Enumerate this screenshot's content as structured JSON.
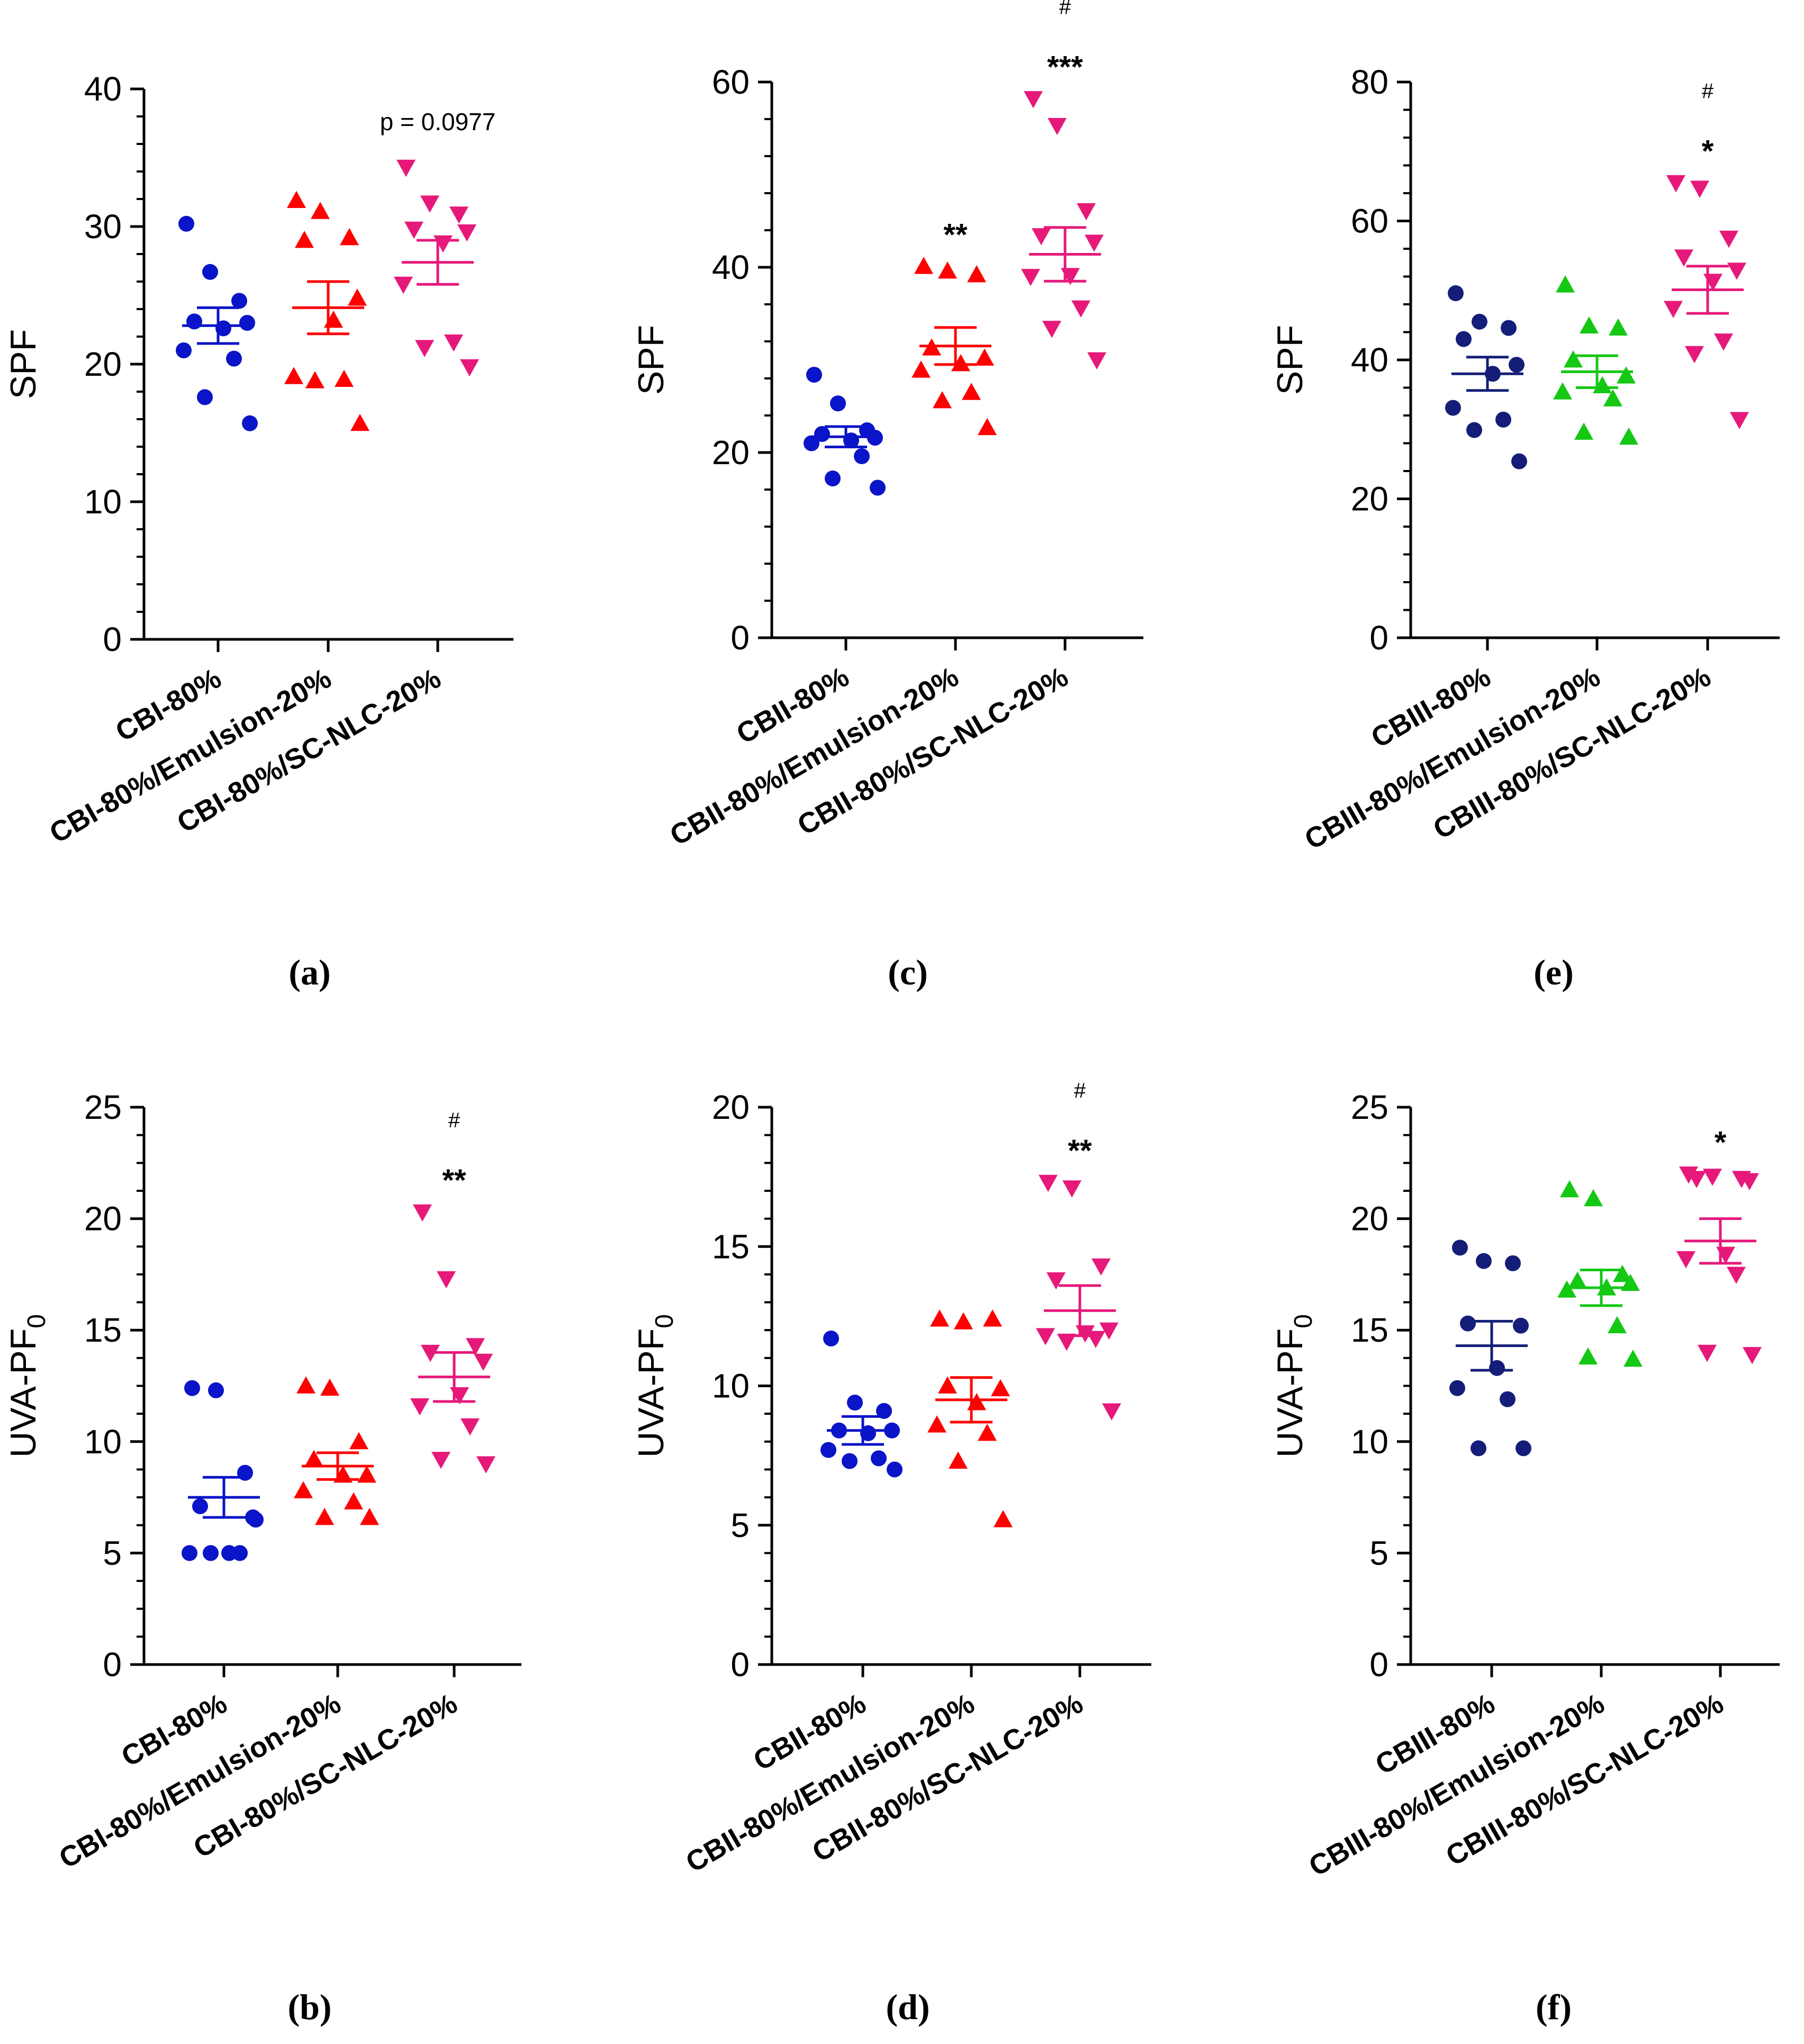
{
  "chart_data": [
    {
      "id": "a",
      "type": "scatter",
      "panel_label": "(a)",
      "ylabel": "SPF",
      "ylabel_sub": "",
      "ylim": [
        0,
        40
      ],
      "yticks": [
        0,
        10,
        20,
        30,
        40
      ],
      "ytick_labels": [
        "0",
        "10",
        "20",
        "30",
        "40"
      ],
      "categories": [
        "CBI-80%",
        "CBI-80%/Emulsion-20%",
        "CBI-80%/SC-NLC-20%"
      ],
      "series": [
        {
          "name": "CBI-80%",
          "marker": "circle",
          "color": "#0a14c8",
          "values": [
            30.2,
            26.7,
            24.6,
            23.1,
            23.0,
            22.6,
            21.0,
            20.4,
            17.6,
            15.7
          ],
          "mean": 22.8,
          "sem": 1.3
        },
        {
          "name": "CBI-80%/Emulsion-20%",
          "marker": "triangle-up",
          "color": "#ff0000",
          "values": [
            31.9,
            31.1,
            29.2,
            29.0,
            24.8,
            23.2,
            19.1,
            18.9,
            18.8,
            15.7
          ],
          "mean": 24.1,
          "sem": 1.9
        },
        {
          "name": "CBI-80%/SC-NLC-20%",
          "marker": "triangle-down",
          "color": "#e6197a",
          "values": [
            34.3,
            31.7,
            30.9,
            29.8,
            29.6,
            28.8,
            25.8,
            21.6,
            21.2,
            19.8
          ],
          "mean": 27.4,
          "sem": 1.6
        }
      ],
      "annotations": [
        {
          "category": 2,
          "lines": [
            "p = 0.0977"
          ]
        }
      ]
    },
    {
      "id": "c",
      "type": "scatter",
      "panel_label": "(c)",
      "ylabel": "SPF",
      "ylabel_sub": "",
      "ylim": [
        0,
        60
      ],
      "yticks": [
        0,
        20,
        40,
        60
      ],
      "ytick_labels": [
        "0",
        "20",
        "40",
        "60"
      ],
      "categories": [
        "CBII-80%",
        "CBII-80%/Emulsion-20%",
        "CBII-80%/SC-NLC-20%"
      ],
      "series": [
        {
          "name": "CBII-80%",
          "marker": "circle",
          "color": "#0a14c8",
          "values": [
            28.4,
            25.3,
            22.4,
            22.0,
            21.6,
            21.3,
            21.0,
            19.6,
            17.2,
            16.2
          ],
          "mean": 21.7,
          "sem": 1.1
        },
        {
          "name": "CBII-80%/Emulsion-20%",
          "marker": "triangle-up",
          "color": "#ff0000",
          "values": [
            40.1,
            39.6,
            39.2,
            31.3,
            30.2,
            29.6,
            28.9,
            26.5,
            25.6,
            22.7
          ],
          "mean": 31.5,
          "sem": 2.0
        },
        {
          "name": "CBII-80%/SC-NLC-20%",
          "marker": "triangle-down",
          "color": "#e6197a",
          "values": [
            58.2,
            55.3,
            46.1,
            43.4,
            42.7,
            39.1,
            39.0,
            35.6,
            33.4,
            30.0
          ],
          "mean": 41.4,
          "sem": 2.9
        }
      ],
      "annotations": [
        {
          "category": 1,
          "lines": [
            "**"
          ]
        },
        {
          "category": 2,
          "lines": [
            "#",
            "***"
          ]
        }
      ]
    },
    {
      "id": "e",
      "type": "scatter",
      "panel_label": "(e)",
      "ylabel": "SPF",
      "ylabel_sub": "",
      "ylim": [
        0,
        80
      ],
      "yticks": [
        0,
        20,
        40,
        60,
        80
      ],
      "ytick_labels": [
        "0",
        "20",
        "40",
        "60",
        "80"
      ],
      "categories": [
        "CBIII-80%",
        "CBIII-80%/Emulsion-20%",
        "CBIII-80%/SC-NLC-20%"
      ],
      "series": [
        {
          "name": "CBIII-80%",
          "marker": "circle",
          "color": "#141e78",
          "values": [
            49.6,
            45.5,
            44.6,
            43.0,
            39.3,
            38.0,
            33.1,
            31.4,
            29.9,
            25.4
          ],
          "mean": 38.0,
          "sem": 2.4
        },
        {
          "name": "CBIII-80%/Emulsion-20%",
          "marker": "triangle-up",
          "color": "#14c814",
          "values": [
            50.8,
            44.9,
            44.6,
            40.0,
            37.7,
            36.3,
            35.4,
            34.4,
            29.6,
            28.9
          ],
          "mean": 38.3,
          "sem": 2.3
        },
        {
          "name": "CBIII-80%/SC-NLC-20%",
          "marker": "triangle-down",
          "color": "#e6197a",
          "values": [
            65.5,
            64.7,
            57.5,
            54.8,
            52.9,
            51.3,
            47.4,
            42.7,
            40.9,
            31.4
          ],
          "mean": 50.1,
          "sem": 3.4
        }
      ],
      "annotations": [
        {
          "category": 2,
          "lines": [
            "#",
            "*"
          ]
        }
      ]
    },
    {
      "id": "b",
      "type": "scatter",
      "panel_label": "(b)",
      "ylabel": "UVA-PF",
      "ylabel_sub": "0",
      "ylim": [
        0,
        25
      ],
      "yticks": [
        0,
        5,
        10,
        15,
        20,
        25
      ],
      "ytick_labels": [
        "0",
        "5",
        "10",
        "15",
        "20",
        "25"
      ],
      "categories": [
        "CBI-80%",
        "CBI-80%/Emulsion-20%",
        "CBI-80%/SC-NLC-20%"
      ],
      "series": [
        {
          "name": "CBI-80%",
          "marker": "circle",
          "color": "#0a14c8",
          "values": [
            12.4,
            12.3,
            8.6,
            7.1,
            6.6,
            5.0,
            5.0,
            5.0,
            5.0,
            6.5
          ],
          "mean": 7.5,
          "sem": 0.9
        },
        {
          "name": "CBI-80%/Emulsion-20%",
          "marker": "triangle-up",
          "color": "#ff0000",
          "values": [
            12.5,
            12.4,
            10.0,
            9.2,
            8.5,
            8.5,
            7.8,
            7.3,
            6.6,
            6.6
          ],
          "mean": 8.9,
          "sem": 0.6
        },
        {
          "name": "CBI-80%/SC-NLC-20%",
          "marker": "triangle-down",
          "color": "#e6197a",
          "values": [
            20.3,
            17.3,
            14.3,
            14.0,
            13.6,
            12.1,
            11.6,
            10.7,
            9.2,
            9.0
          ],
          "mean": 12.9,
          "sem": 1.1
        }
      ],
      "annotations": [
        {
          "category": 2,
          "lines": [
            "#",
            "**"
          ]
        }
      ]
    },
    {
      "id": "d",
      "type": "scatter",
      "panel_label": "(d)",
      "ylabel": "UVA-PF",
      "ylabel_sub": "0",
      "ylim": [
        0,
        20
      ],
      "yticks": [
        0,
        5,
        10,
        15,
        20
      ],
      "ytick_labels": [
        "0",
        "5",
        "10",
        "15",
        "20"
      ],
      "categories": [
        "CBII-80%",
        "CBII-80%/Emulsion-20%",
        "CBII-80%/SC-NLC-20%"
      ],
      "series": [
        {
          "name": "CBII-80%",
          "marker": "circle",
          "color": "#0a14c8",
          "values": [
            11.7,
            9.4,
            9.1,
            8.4,
            8.4,
            8.3,
            7.7,
            7.4,
            7.3,
            7.0
          ],
          "mean": 8.4,
          "sem": 0.5
        },
        {
          "name": "CBII-80%/Emulsion-20%",
          "marker": "triangle-up",
          "color": "#ff0000",
          "values": [
            12.4,
            12.3,
            12.4,
            10.0,
            9.9,
            9.4,
            8.6,
            8.3,
            7.3,
            5.2
          ],
          "mean": 9.5,
          "sem": 0.8
        },
        {
          "name": "CBII-80%/SC-NLC-20%",
          "marker": "triangle-down",
          "color": "#e6197a",
          "values": [
            17.3,
            17.1,
            14.3,
            13.8,
            12.0,
            11.9,
            11.8,
            11.7,
            11.6,
            9.1
          ],
          "mean": 12.7,
          "sem": 0.9
        }
      ],
      "annotations": [
        {
          "category": 2,
          "lines": [
            "#",
            "**"
          ]
        }
      ]
    },
    {
      "id": "f",
      "type": "scatter",
      "panel_label": "(f)",
      "ylabel": "UVA-PF",
      "ylabel_sub": "0",
      "ylim": [
        0,
        25
      ],
      "yticks": [
        0,
        5,
        10,
        15,
        20,
        25
      ],
      "ytick_labels": [
        "0",
        "5",
        "10",
        "15",
        "20",
        "25"
      ],
      "categories": [
        "CBIII-80%",
        "CBIII-80%/Emulsion-20%",
        "CBIII-80%/SC-NLC-20%"
      ],
      "series": [
        {
          "name": "CBIII-80%",
          "marker": "circle",
          "color": "#141e78",
          "values": [
            18.7,
            18.1,
            18.0,
            15.3,
            15.2,
            13.3,
            12.4,
            11.9,
            9.7,
            9.7
          ],
          "mean": 14.3,
          "sem": 1.1
        },
        {
          "name": "CBIII-80%/Emulsion-20%",
          "marker": "triangle-up",
          "color": "#14c814",
          "values": [
            21.3,
            20.9,
            17.5,
            17.2,
            17.1,
            16.9,
            16.8,
            15.2,
            13.8,
            13.7
          ],
          "mean": 16.9,
          "sem": 0.8
        },
        {
          "name": "CBIII-80%/SC-NLC-20%",
          "marker": "triangle-down",
          "color": "#e6197a",
          "values": [
            22.0,
            21.9,
            21.8,
            21.8,
            21.7,
            18.4,
            18.2,
            17.5,
            14.0,
            13.9
          ],
          "mean": 19.0,
          "sem": 1.0
        }
      ],
      "annotations": [
        {
          "category": 2,
          "lines": [
            "*"
          ]
        }
      ]
    }
  ]
}
